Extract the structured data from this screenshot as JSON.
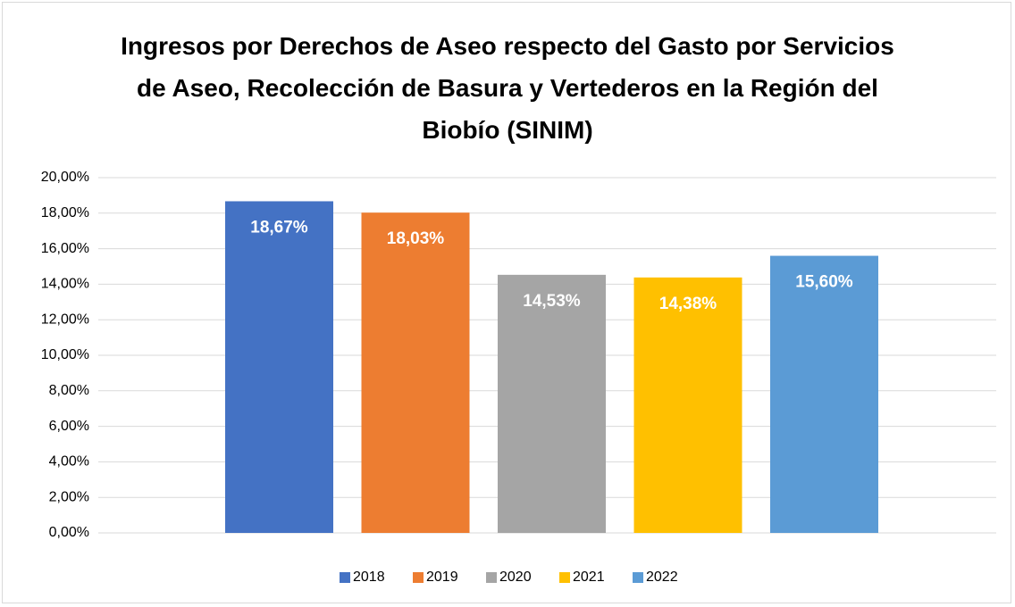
{
  "chart_data": {
    "type": "bar",
    "title": "Ingresos por Derechos de Aseo respecto del Gasto por Servicios de Aseo, Recolección de Basura y Vertederos en la Región del Biobío (SINIM)",
    "categories": [
      null
    ],
    "series": [
      {
        "name": "2018",
        "color": "#4472c4",
        "values": [
          18.67
        ],
        "value_labels": [
          "18,67%"
        ]
      },
      {
        "name": "2019",
        "color": "#ed7d31",
        "values": [
          18.03
        ],
        "value_labels": [
          "18,03%"
        ]
      },
      {
        "name": "2020",
        "color": "#a5a5a5",
        "values": [
          14.53
        ],
        "value_labels": [
          "14,53%"
        ]
      },
      {
        "name": "2021",
        "color": "#ffc000",
        "values": [
          14.38
        ],
        "value_labels": [
          "14,38%"
        ]
      },
      {
        "name": "2022",
        "color": "#5b9bd5",
        "values": [
          15.6
        ],
        "value_labels": [
          "15,60%"
        ]
      }
    ],
    "ylim": [
      0,
      20
    ],
    "yticks": [
      {
        "value": 0,
        "label": "0,00%"
      },
      {
        "value": 2,
        "label": "2,00%"
      },
      {
        "value": 4,
        "label": "4,00%"
      },
      {
        "value": 6,
        "label": "6,00%"
      },
      {
        "value": 8,
        "label": "8,00%"
      },
      {
        "value": 10,
        "label": "10,00%"
      },
      {
        "value": 12,
        "label": "12,00%"
      },
      {
        "value": 14,
        "label": "14,00%"
      },
      {
        "value": 16,
        "label": "16,00%"
      },
      {
        "value": 18,
        "label": "18,00%"
      },
      {
        "value": 20,
        "label": "20,00%"
      }
    ],
    "grid": true,
    "legend": "bottom"
  }
}
